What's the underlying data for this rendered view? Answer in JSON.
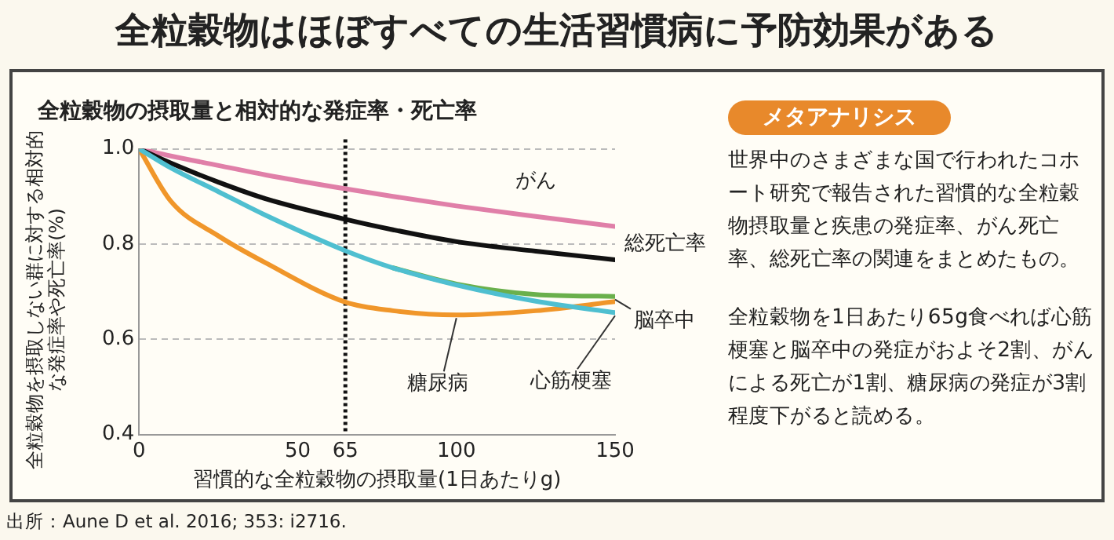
{
  "chart_data": [
    {
      "type": "line",
      "title": "全粒穀物はほぼすべての生活習慣病に予防効果がある",
      "subtitle": "全粒穀物の摂取量と相対的な発症率・死亡率",
      "xlabel": "習慣的な全粒穀物の摂取量(1日あたりg)",
      "ylabel": "全粒穀物を摂取しない群に対する相対的な発症率や死亡率(%)",
      "x": [
        0,
        10,
        25,
        40,
        65,
        80,
        100,
        125,
        150
      ],
      "series": [
        {
          "name": "がん",
          "color": "#e07fa8",
          "values": [
            1.0,
            0.985,
            0.965,
            0.945,
            0.916,
            0.9,
            0.88,
            0.858,
            0.837
          ]
        },
        {
          "name": "総死亡率",
          "color": "#111111",
          "values": [
            1.0,
            0.97,
            0.93,
            0.895,
            0.852,
            0.83,
            0.805,
            0.785,
            0.767
          ]
        },
        {
          "name": "脳卒中",
          "color": "#6ab04c",
          "values": [
            null,
            null,
            null,
            null,
            null,
            0.75,
            0.716,
            0.694,
            0.69
          ]
        },
        {
          "name": "糖尿病",
          "color": "#f0962a",
          "values": [
            1.0,
            0.89,
            0.817,
            0.76,
            0.678,
            0.66,
            0.651,
            0.66,
            0.679
          ]
        },
        {
          "name": "心筋梗塞",
          "color": "#4fbfd0",
          "values": [
            1.0,
            0.96,
            0.91,
            0.86,
            0.786,
            0.75,
            0.714,
            0.68,
            0.656
          ]
        }
      ],
      "xlim": [
        0,
        150
      ],
      "xticks": [
        0,
        50,
        65,
        100,
        150
      ],
      "ylim": [
        0.4,
        1.0
      ],
      "yticks": [
        0.4,
        0.6,
        0.8,
        {
          "value": 1.0,
          "label": "1.0"
        }
      ],
      "grid": "y",
      "marker": "none",
      "line_style": "solid",
      "ref_lines": [
        {
          "axis": "x",
          "value": 65,
          "color": "#111111",
          "line_style": "dotted"
        }
      ],
      "annotations": [
        "出所：Aune D et al. 2016; 353: i2716."
      ]
    },
    {
      "type": "other",
      "title": "メタアナリシス",
      "annotations": [
        "世界中のさまざまな国で行われたコホート研究で報告された習慣的な全粒穀物摂取量と疾患の発症率、がん死亡率、総死亡率の関連をまとめたもの。",
        "全粒穀物を1日あたり65g食べれば心筋梗塞と脳卒中の発症がおよそ2割、がんによる死亡が1割、糖尿病の発症が3割程度下がると読める。"
      ]
    }
  ]
}
